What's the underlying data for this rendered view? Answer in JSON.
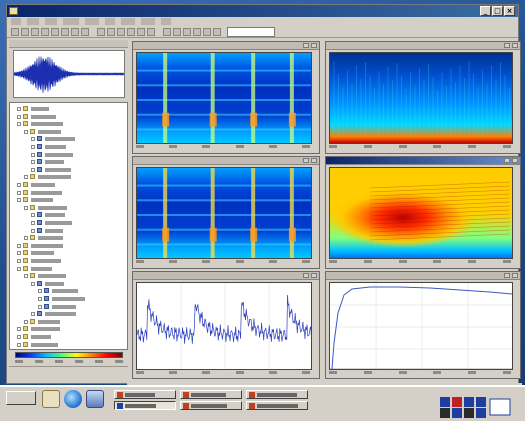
{
  "window": {
    "title": "",
    "controls": {
      "minimize": "_",
      "maximize": "□",
      "close": "×"
    },
    "colors": {
      "titlebar_start": "#0a246a",
      "titlebar_end": "#3a6ea5",
      "chrome": "#d4d0c8"
    }
  },
  "menu": {
    "items": [
      "",
      "",
      "",
      "",
      "",
      "",
      "",
      "",
      ""
    ]
  },
  "toolbar": {
    "buttons": [
      "open-icon",
      "save-icon",
      "print-icon",
      "cut-icon",
      "copy-icon",
      "paste-icon",
      "undo-icon",
      "redo-icon",
      "play-icon",
      "stop-icon",
      "record-icon",
      "zoom-in-icon",
      "zoom-out-icon",
      "cursor-icon",
      "select-icon",
      "marker-icon",
      "filter-icon",
      "fft-icon",
      "window-icon",
      "help-icon"
    ],
    "combo_value": ""
  },
  "left_panel": {
    "overview_title": "",
    "tree_rows": [
      {
        "depth": 1,
        "icon": "folder-icon",
        "label": ""
      },
      {
        "depth": 1,
        "icon": "folder-icon",
        "label": ""
      },
      {
        "depth": 1,
        "icon": "folder-icon",
        "label": ""
      },
      {
        "depth": 2,
        "icon": "folder-icon",
        "label": ""
      },
      {
        "depth": 3,
        "icon": "file-icon",
        "label": ""
      },
      {
        "depth": 3,
        "icon": "file-icon",
        "label": ""
      },
      {
        "depth": 3,
        "icon": "file-icon",
        "label": ""
      },
      {
        "depth": 3,
        "icon": "file-icon",
        "label": ""
      },
      {
        "depth": 3,
        "icon": "file-icon",
        "label": ""
      },
      {
        "depth": 2,
        "icon": "folder-icon",
        "label": ""
      },
      {
        "depth": 1,
        "icon": "folder-icon",
        "label": ""
      },
      {
        "depth": 1,
        "icon": "folder-icon",
        "label": ""
      },
      {
        "depth": 1,
        "icon": "folder-icon",
        "label": ""
      },
      {
        "depth": 2,
        "icon": "folder-icon",
        "label": ""
      },
      {
        "depth": 3,
        "icon": "file-icon",
        "label": ""
      },
      {
        "depth": 3,
        "icon": "file-icon",
        "label": ""
      },
      {
        "depth": 3,
        "icon": "file-icon",
        "label": ""
      },
      {
        "depth": 2,
        "icon": "folder-icon",
        "label": ""
      },
      {
        "depth": 1,
        "icon": "folder-icon",
        "label": ""
      },
      {
        "depth": 1,
        "icon": "folder-icon",
        "label": ""
      },
      {
        "depth": 1,
        "icon": "folder-icon",
        "label": ""
      },
      {
        "depth": 1,
        "icon": "folder-icon",
        "label": ""
      },
      {
        "depth": 2,
        "icon": "folder-icon",
        "label": ""
      },
      {
        "depth": 3,
        "icon": "file-icon",
        "label": ""
      },
      {
        "depth": 4,
        "icon": "file-icon",
        "label": ""
      },
      {
        "depth": 4,
        "icon": "file-icon",
        "label": ""
      },
      {
        "depth": 4,
        "icon": "file-icon",
        "label": ""
      },
      {
        "depth": 3,
        "icon": "file-icon",
        "label": ""
      },
      {
        "depth": 2,
        "icon": "folder-icon",
        "label": ""
      },
      {
        "depth": 1,
        "icon": "folder-icon",
        "label": ""
      },
      {
        "depth": 1,
        "icon": "folder-icon",
        "label": ""
      },
      {
        "depth": 1,
        "icon": "folder-icon",
        "label": ""
      }
    ],
    "colorbar_colors": [
      "#00007a",
      "#0040ff",
      "#00c0ff",
      "#40ff80",
      "#ffff00",
      "#ff8000",
      "#ff0000",
      "#800000"
    ]
  },
  "panes": [
    {
      "id": "spectrogram-top-left",
      "title": "",
      "style": "spec-blue"
    },
    {
      "id": "spectrum-top-right",
      "title": "",
      "style": "spec-lowband"
    },
    {
      "id": "spectrogram-mid-left",
      "title": "",
      "style": "spec-blue"
    },
    {
      "id": "spectrum-mid-right",
      "title": "",
      "style": "spec-hot"
    },
    {
      "id": "waveform-bottom-left",
      "title": "",
      "style": "white-plot"
    },
    {
      "id": "response-bottom-right",
      "title": "",
      "style": "white-plot"
    }
  ],
  "taskbar": {
    "start_label": "",
    "quick_launch": [
      "desktop-icon",
      "browser-icon",
      "mail-icon"
    ],
    "tasks": [
      {
        "label": "",
        "icon": "app-icon",
        "active": false
      },
      {
        "label": "",
        "icon": "app-icon",
        "active": false
      },
      {
        "label": "",
        "icon": "app-icon",
        "active": false
      },
      {
        "label": "",
        "icon": "app-icon",
        "active": true
      },
      {
        "label": "",
        "icon": "app-icon",
        "active": false
      },
      {
        "label": "",
        "icon": "app-icon",
        "active": false
      }
    ]
  }
}
